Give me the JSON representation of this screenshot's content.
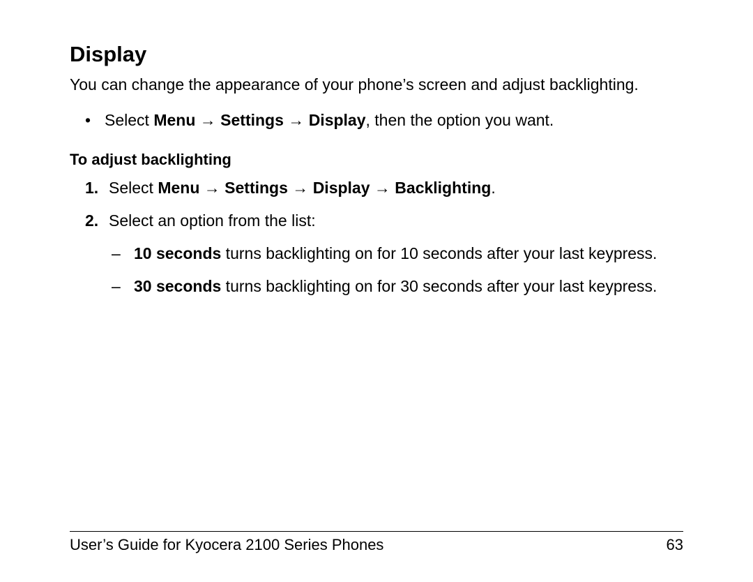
{
  "heading": "Display",
  "intro": "You can change the appearance of your phone’s screen and adjust backlighting.",
  "arrow": "→",
  "bullet": {
    "mark": "•",
    "pre": "Select ",
    "p1": "Menu",
    "p2": "Settings",
    "p3": "Display",
    "post": ", then the option you want."
  },
  "subheading": "To adjust backlighting",
  "step1": {
    "num": "1.",
    "pre": "Select ",
    "p1": "Menu",
    "p2": "Settings",
    "p3": "Display",
    "p4": "Backlighting",
    "post": "."
  },
  "step2": {
    "num": "2.",
    "text": "Select an option from the list:"
  },
  "opt1": {
    "mark": "–",
    "bold": "10 seconds",
    "rest": " turns backlighting on for 10 seconds after your last keypress."
  },
  "opt2": {
    "mark": "–",
    "bold": "30 seconds",
    "rest": " turns backlighting on for 30 seconds after your last keypress."
  },
  "footer": {
    "title": "User’s Guide for Kyocera 2100 Series Phones",
    "page": "63"
  }
}
